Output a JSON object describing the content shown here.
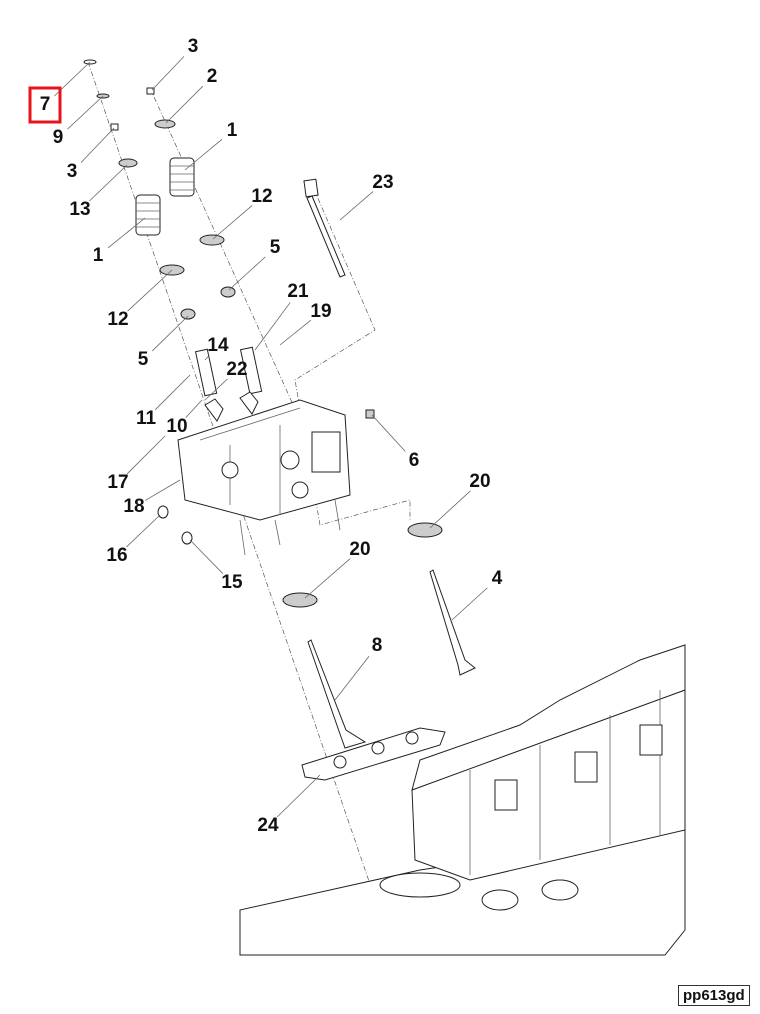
{
  "callouts": [
    {
      "number": "7",
      "highlighted": true
    },
    {
      "number": "3"
    },
    {
      "number": "2"
    },
    {
      "number": "9"
    },
    {
      "number": "1"
    },
    {
      "number": "3"
    },
    {
      "number": "13"
    },
    {
      "number": "12"
    },
    {
      "number": "1"
    },
    {
      "number": "23"
    },
    {
      "number": "5"
    },
    {
      "number": "21"
    },
    {
      "number": "12"
    },
    {
      "number": "19"
    },
    {
      "number": "14"
    },
    {
      "number": "5"
    },
    {
      "number": "22"
    },
    {
      "number": "11"
    },
    {
      "number": "10"
    },
    {
      "number": "6"
    },
    {
      "number": "17"
    },
    {
      "number": "20"
    },
    {
      "number": "18"
    },
    {
      "number": "16"
    },
    {
      "number": "20"
    },
    {
      "number": "15"
    },
    {
      "number": "4"
    },
    {
      "number": "8"
    },
    {
      "number": "24"
    }
  ],
  "highlight_color": "#e8141b",
  "figure_code": "pp613gd"
}
